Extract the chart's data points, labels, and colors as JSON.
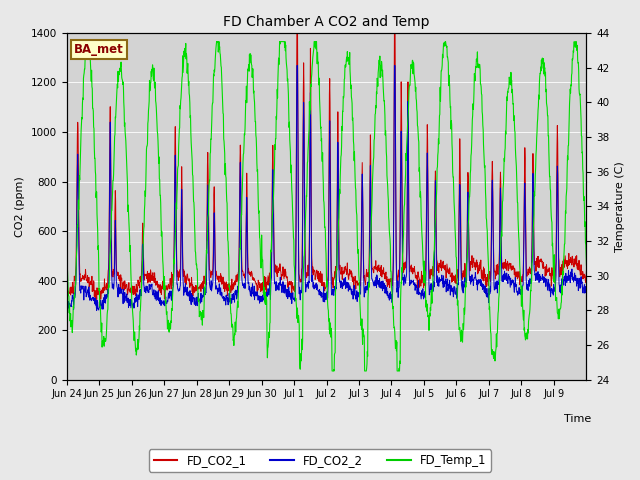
{
  "title": "FD Chamber A CO2 and Temp",
  "xlabel": "Time",
  "ylabel_left": "CO2 (ppm)",
  "ylabel_right": "Temperature (C)",
  "ylim_left": [
    0,
    1400
  ],
  "ylim_right": [
    24,
    44
  ],
  "yticks_left": [
    0,
    200,
    400,
    600,
    800,
    1000,
    1200,
    1400
  ],
  "yticks_right": [
    24,
    26,
    28,
    30,
    32,
    34,
    36,
    38,
    40,
    42,
    44
  ],
  "bg_color": "#e8e8e8",
  "plot_bg_color": "#d3d3d3",
  "legend_items": [
    "FD_CO2_1",
    "FD_CO2_2",
    "FD_Temp_1"
  ],
  "legend_colors": [
    "#cc0000",
    "#0000cc",
    "#00cc00"
  ],
  "label_box_text": "BA_met",
  "label_box_bg": "#ffffc8",
  "label_box_border": "#8b6914",
  "line_colors": {
    "co2_1": "#cc0000",
    "co2_2": "#0000cc",
    "temp": "#00dd00"
  },
  "xtick_labels": [
    "Jun 24",
    "Jun 25",
    "Jun 26",
    "Jun 27",
    "Jun 28",
    "Jun 29",
    "Jun 30",
    "Jul 1",
    "Jul 2",
    "Jul 3",
    "Jul 4",
    "Jul 5",
    "Jul 6",
    "Jul 7",
    "Jul 8",
    "Jul 9"
  ],
  "num_days": 16
}
